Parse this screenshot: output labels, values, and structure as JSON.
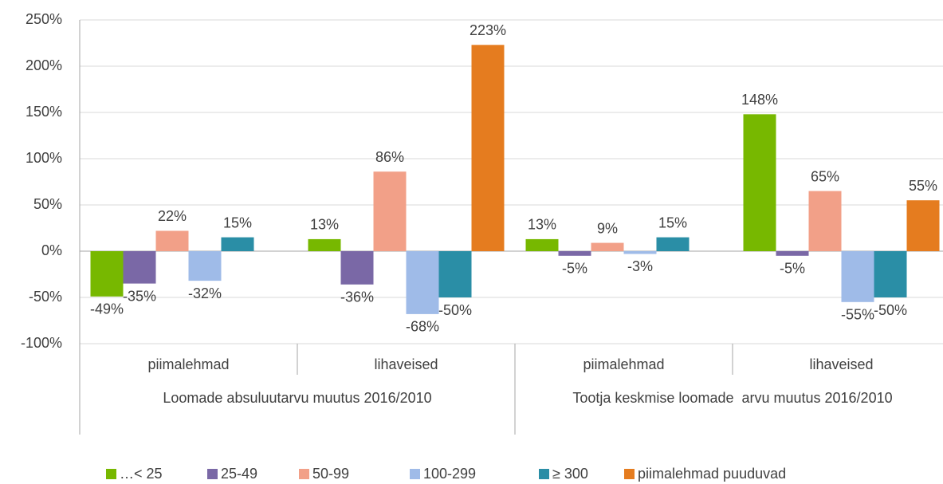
{
  "chart_data": {
    "type": "bar",
    "categories": [
      "piimalehmad",
      "lihaveised",
      "piimalehmad",
      "lihaveised"
    ],
    "groups": [
      "Loomade absuluutarvu muutus 2016/2010",
      "Tootja keskmise loomade  arvu muutus 2016/2010"
    ],
    "series": [
      {
        "name": "…< 25",
        "color": "#77b800",
        "values": [
          -49,
          13,
          13,
          148
        ],
        "value_labels": [
          "-49%",
          "13%",
          "13%",
          "148%"
        ]
      },
      {
        "name": "25-49",
        "color": "#7a68a6",
        "values": [
          -35,
          -36,
          -5,
          -5
        ],
        "value_labels": [
          "-35%",
          "-36%",
          "-5%",
          "-5%"
        ]
      },
      {
        "name": "50-99",
        "color": "#f2a088",
        "values": [
          22,
          86,
          9,
          65
        ],
        "value_labels": [
          "22%",
          "86%",
          "9%",
          "65%"
        ]
      },
      {
        "name": "100-299",
        "color": "#9fbbe8",
        "values": [
          -32,
          -68,
          -3,
          -55
        ],
        "value_labels": [
          "-32%",
          "-68%",
          "-3%",
          "-55%"
        ]
      },
      {
        "name": "≥ 300",
        "color": "#2a8ea6",
        "values": [
          15,
          -50,
          15,
          -50
        ],
        "value_labels": [
          "15%",
          "-50%",
          "15%",
          "-50%"
        ]
      },
      {
        "name": "piimalehmad puuduvad",
        "color": "#e57c1f",
        "values": [
          null,
          223,
          null,
          55
        ],
        "value_labels": [
          null,
          "223%",
          null,
          "55%"
        ]
      }
    ],
    "ylim": [
      -100,
      250
    ],
    "yticks": [
      {
        "value": -100,
        "label": "-100%"
      },
      {
        "value": -50,
        "label": "-50%"
      },
      {
        "value": 0,
        "label": "0%"
      },
      {
        "value": 50,
        "label": "50%"
      },
      {
        "value": 100,
        "label": "100%"
      },
      {
        "value": 150,
        "label": "150%"
      },
      {
        "value": 200,
        "label": "200%"
      },
      {
        "value": 250,
        "label": "250%"
      }
    ],
    "grid": true
  }
}
